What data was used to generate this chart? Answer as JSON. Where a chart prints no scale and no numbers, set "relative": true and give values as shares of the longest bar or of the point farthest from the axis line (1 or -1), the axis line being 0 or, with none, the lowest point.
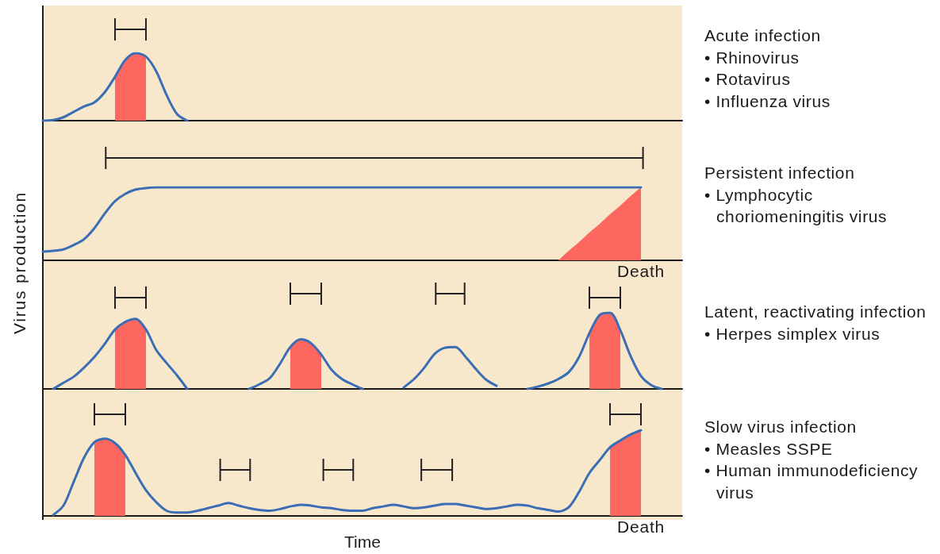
{
  "chart_data": [
    {
      "type": "line",
      "relative": true,
      "annotations": [
        "Acute infection",
        "• Rhinovirus",
        "• Rotavirus",
        "• Influenza virus"
      ],
      "categories": [
        null,
        null,
        null,
        null,
        null,
        null,
        null,
        null,
        null,
        null,
        null,
        null,
        null,
        null,
        null,
        null,
        null,
        null,
        null,
        null,
        null,
        null,
        null,
        null,
        null,
        null,
        null,
        null,
        null,
        null,
        null,
        null,
        null,
        null,
        null,
        null,
        null,
        null,
        null,
        null,
        null,
        null,
        null,
        null,
        null,
        null,
        null,
        null,
        null,
        null,
        null,
        null,
        null,
        null,
        null,
        null,
        null,
        null,
        null,
        null,
        null,
        null,
        null
      ],
      "series": [
        {
          "type": "area",
          "color": "#fe6660",
          "values": [
            null,
            null,
            null,
            null,
            null,
            null,
            null,
            0.65,
            0.9,
            1,
            0.95,
            null,
            null,
            null,
            null,
            null,
            null,
            null,
            null,
            null,
            null,
            null,
            null,
            null,
            null,
            null,
            null,
            null,
            null,
            null,
            null,
            null,
            null,
            null,
            null,
            null,
            null,
            null,
            null,
            null,
            null,
            null,
            null,
            null,
            null,
            null,
            null,
            null,
            null,
            null,
            null,
            null,
            null,
            null,
            null,
            null,
            null,
            null,
            null,
            null,
            null,
            null,
            null
          ]
        },
        {
          "type": "line",
          "color": "#3a6db5",
          "values": [
            0,
            0.01,
            0.05,
            0.13,
            0.21,
            0.27,
            0.42,
            0.65,
            0.9,
            1,
            0.95,
            0.73,
            0.38,
            0.1,
            0,
            null,
            null,
            null,
            null,
            null,
            null,
            null,
            null,
            null,
            null,
            null,
            null,
            null,
            null,
            null,
            null,
            null,
            null,
            null,
            null,
            null,
            null,
            null,
            null,
            null,
            null,
            null,
            null,
            null,
            null,
            null,
            null,
            null,
            null,
            null,
            null,
            null,
            null,
            null,
            null,
            null,
            null,
            null,
            null,
            null,
            null,
            null,
            null
          ]
        }
      ]
    },
    {
      "type": "line",
      "relative": true,
      "ylabel": "Virus production",
      "annotations": [
        "Persistent infection",
        "• Lymphocytic choriomeningitis virus",
        {
          "text": "Death",
          "y": 0
        }
      ],
      "categories": [
        null,
        null,
        null,
        null,
        null,
        null,
        null,
        null,
        null,
        null,
        null,
        null,
        null,
        null,
        null,
        null,
        null,
        null,
        null,
        null,
        null,
        null,
        null,
        null,
        null,
        null,
        null,
        null,
        null,
        null,
        null,
        null,
        null,
        null,
        null,
        null,
        null,
        null,
        null,
        null,
        null,
        null,
        null,
        null,
        null,
        null,
        null,
        null,
        null,
        null,
        null,
        null,
        null,
        null,
        null,
        null,
        null,
        null,
        null,
        null,
        null,
        null,
        null
      ],
      "series": [
        {
          "type": "area",
          "color": "#fe6660",
          "values": [
            null,
            null,
            null,
            null,
            null,
            null,
            null,
            null,
            null,
            null,
            null,
            null,
            null,
            null,
            null,
            null,
            null,
            null,
            null,
            null,
            null,
            null,
            null,
            null,
            null,
            null,
            null,
            null,
            null,
            null,
            null,
            null,
            null,
            null,
            null,
            null,
            null,
            null,
            null,
            null,
            null,
            null,
            null,
            null,
            null,
            null,
            null,
            null,
            null,
            null,
            0,
            0.13,
            0.25,
            0.38,
            0.5,
            0.63,
            0.75,
            0.88,
            1,
            null,
            null,
            null,
            null
          ]
        },
        {
          "type": "line",
          "color": "#3a6db5",
          "values": [
            0.12,
            0.13,
            0.15,
            0.21,
            0.29,
            0.44,
            0.64,
            0.81,
            0.91,
            0.97,
            0.99,
            1,
            1,
            1,
            1,
            1,
            1,
            1,
            1,
            1,
            1,
            1,
            1,
            1,
            1,
            1,
            1,
            1,
            1,
            1,
            1,
            1,
            1,
            1,
            1,
            1,
            1,
            1,
            1,
            1,
            1,
            1,
            1,
            1,
            1,
            1,
            1,
            1,
            1,
            1,
            1,
            1,
            1,
            1,
            1,
            1,
            1,
            1,
            1,
            null,
            null,
            null,
            null
          ]
        }
      ]
    },
    {
      "type": "line",
      "relative": true,
      "annotations": [
        "Latent, reactivating infection",
        "• Herpes simplex virus"
      ],
      "categories": [
        null,
        null,
        null,
        null,
        null,
        null,
        null,
        null,
        null,
        null,
        null,
        null,
        null,
        null,
        null,
        null,
        null,
        null,
        null,
        null,
        null,
        null,
        null,
        null,
        null,
        null,
        null,
        null,
        null,
        null,
        null,
        null,
        null,
        null,
        null,
        null,
        null,
        null,
        null,
        null,
        null,
        null,
        null,
        null,
        null,
        null,
        null,
        null,
        null,
        null,
        null,
        null,
        null,
        null,
        null,
        null,
        null,
        null,
        null,
        null,
        null,
        null,
        null
      ],
      "series": [
        {
          "type": "area",
          "color": "#fe6660",
          "values": [
            null,
            null,
            null,
            null,
            null,
            null,
            null,
            0.78,
            0.88,
            0.92,
            0.78,
            null,
            null,
            null,
            null,
            null,
            null,
            null,
            null,
            null,
            null,
            null,
            null,
            null,
            0.55,
            0.65,
            0.6,
            0.45,
            null,
            null,
            null,
            null,
            null,
            null,
            null,
            null,
            null,
            null,
            null,
            null,
            null,
            null,
            null,
            null,
            null,
            null,
            null,
            null,
            null,
            null,
            null,
            null,
            null,
            0.73,
            0.97,
            1,
            0.77,
            null,
            null,
            null,
            null,
            null,
            null
          ]
        },
        {
          "type": "line",
          "color": "#3a6db5",
          "values": [
            null,
            0,
            0.08,
            0.16,
            0.28,
            0.42,
            0.59,
            0.78,
            0.88,
            0.92,
            0.78,
            0.51,
            0.34,
            0.18,
            0,
            null,
            null,
            null,
            null,
            null,
            0,
            0.06,
            0.14,
            0.33,
            0.55,
            0.65,
            0.6,
            0.45,
            0.25,
            0.13,
            0.06,
            0,
            null,
            null,
            null,
            0.02,
            0.13,
            0.28,
            0.46,
            0.54,
            0.55,
            0.42,
            0.26,
            0.12,
            0.04,
            null,
            null,
            0,
            0.03,
            0.07,
            0.13,
            0.22,
            0.42,
            0.73,
            0.97,
            1,
            0.77,
            0.43,
            0.17,
            0.05,
            0,
            null,
            null
          ]
        }
      ]
    },
    {
      "type": "line",
      "relative": true,
      "xlabel": "Time",
      "annotations": [
        "Slow virus infection",
        "• Measles SSPE",
        "• Human immunodeficiency virus",
        {
          "text": "Death",
          "y": 0
        }
      ],
      "categories": [
        null,
        null,
        null,
        null,
        null,
        null,
        null,
        null,
        null,
        null,
        null,
        null,
        null,
        null,
        null,
        null,
        null,
        null,
        null,
        null,
        null,
        null,
        null,
        null,
        null,
        null,
        null,
        null,
        null,
        null,
        null,
        null,
        null,
        null,
        null,
        null,
        null,
        null,
        null,
        null,
        null,
        null,
        null,
        null,
        null,
        null,
        null,
        null,
        null,
        null,
        null,
        null,
        null,
        null,
        null,
        null,
        null,
        null,
        null,
        null,
        null,
        null,
        null
      ],
      "series": [
        {
          "type": "area",
          "color": "#fe6660",
          "values": [
            null,
            null,
            null,
            null,
            null,
            0.86,
            0.9,
            0.85,
            0.71,
            null,
            null,
            null,
            null,
            null,
            null,
            null,
            null,
            null,
            null,
            null,
            null,
            null,
            null,
            null,
            null,
            null,
            null,
            null,
            null,
            null,
            null,
            null,
            null,
            null,
            null,
            null,
            null,
            null,
            null,
            null,
            null,
            null,
            null,
            null,
            null,
            null,
            null,
            null,
            null,
            null,
            null,
            null,
            null,
            null,
            null,
            0.8,
            0.88,
            0.95,
            1,
            null,
            null,
            null,
            null
          ]
        },
        {
          "type": "line",
          "color": "#3a6db5",
          "values": [
            null,
            0.01,
            0.12,
            0.4,
            0.68,
            0.86,
            0.9,
            0.85,
            0.71,
            0.5,
            0.3,
            0.16,
            0.06,
            0.04,
            0.04,
            0.06,
            0.09,
            0.12,
            0.15,
            0.12,
            0.09,
            0.07,
            0.06,
            0.08,
            0.11,
            0.13,
            0.12,
            0.1,
            0.09,
            0.07,
            0.06,
            0.06,
            0.09,
            0.11,
            0.13,
            0.11,
            0.09,
            0.1,
            0.12,
            0.14,
            0.14,
            0.12,
            0.1,
            0.08,
            0.09,
            0.11,
            0.13,
            0.12,
            0.09,
            0.07,
            0.05,
            0.1,
            0.28,
            0.5,
            0.65,
            0.8,
            0.88,
            0.95,
            1,
            null,
            null,
            null,
            null
          ]
        }
      ]
    }
  ]
}
